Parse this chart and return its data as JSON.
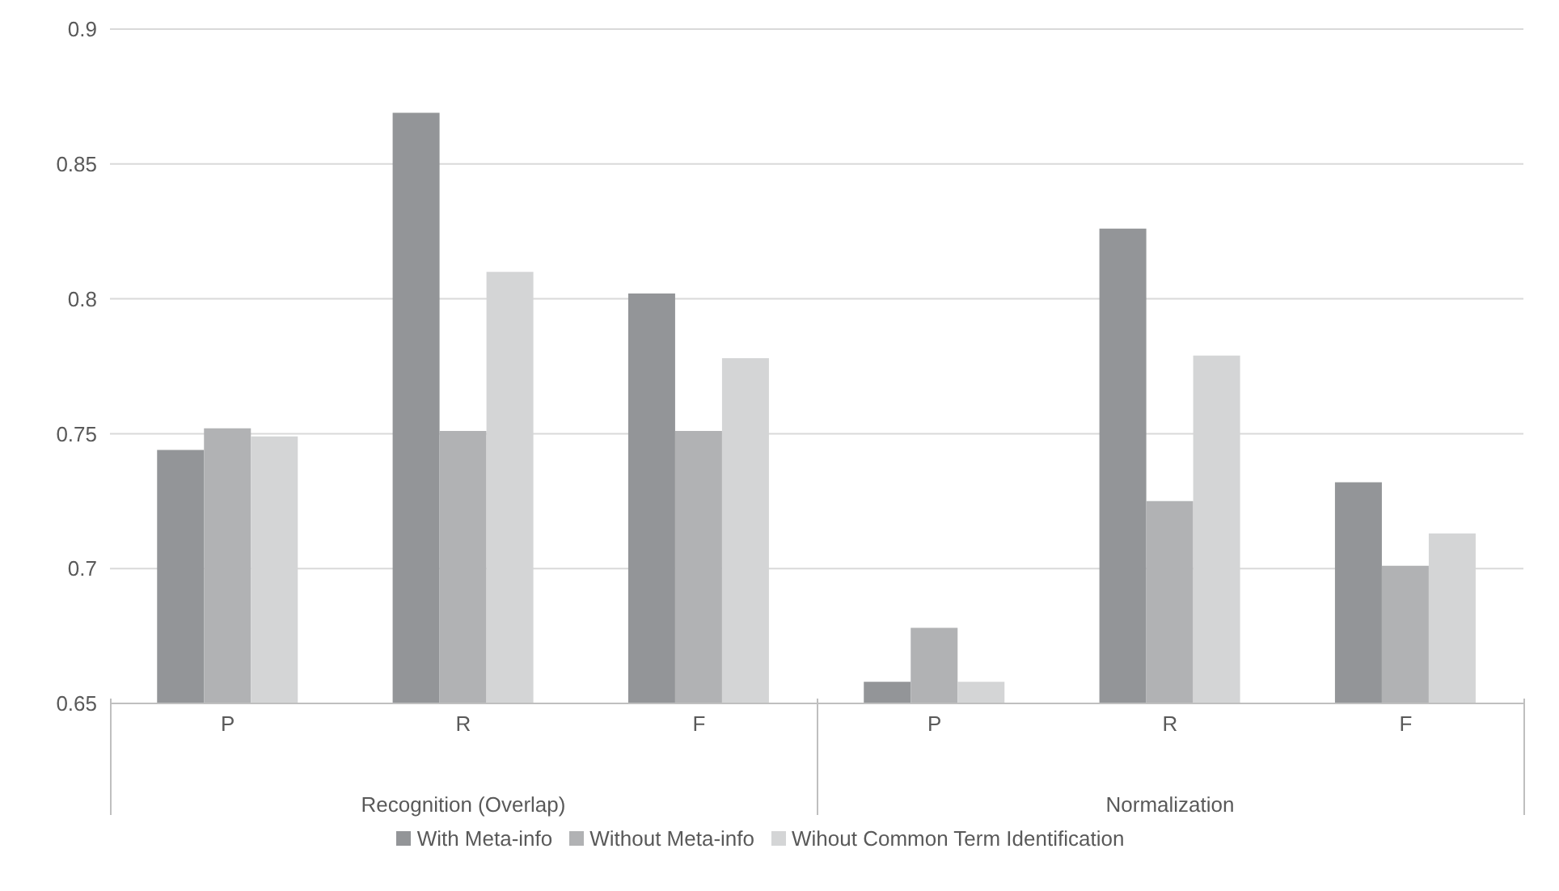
{
  "chart_data": {
    "type": "bar",
    "categories": [
      "P",
      "R",
      "F",
      "P",
      "R",
      "F"
    ],
    "series": [
      {
        "name": "With Meta-info",
        "color": "#939598",
        "values": [
          0.744,
          0.869,
          0.802,
          0.658,
          0.826,
          0.732
        ]
      },
      {
        "name": "Without Meta-info",
        "color": "#b1b2b4",
        "values": [
          0.752,
          0.751,
          0.751,
          0.678,
          0.725,
          0.701
        ]
      },
      {
        "name": "Wihout Common Term Identification",
        "color": "#d4d5d6",
        "values": [
          0.749,
          0.81,
          0.778,
          0.658,
          0.779,
          0.713
        ]
      }
    ],
    "ylim": [
      0.65,
      0.9
    ],
    "yticks": [
      0.65,
      0.7,
      0.75,
      0.8,
      0.85,
      0.9
    ],
    "grid": "y",
    "legend": "bottom",
    "annotations": [
      "Recognition (Overlap)",
      "Normalization"
    ]
  }
}
